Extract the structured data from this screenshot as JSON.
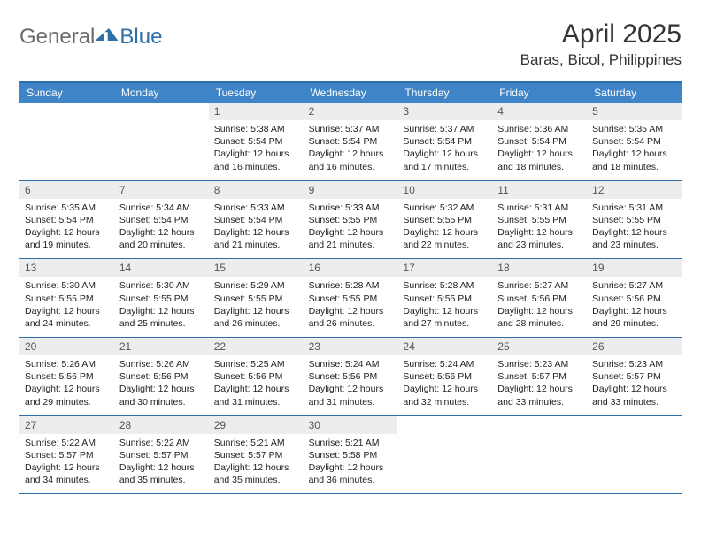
{
  "brand": {
    "gen": "General",
    "blue": "Blue"
  },
  "title": "April 2025",
  "location": "Baras, Bicol, Philippines",
  "headers": [
    "Sunday",
    "Monday",
    "Tuesday",
    "Wednesday",
    "Thursday",
    "Friday",
    "Saturday"
  ],
  "colors": {
    "header_bg": "#3e84c6",
    "header_border": "#2f6fa8",
    "daynum_bg": "#ecedef",
    "text": "#333333"
  },
  "weeks": [
    [
      {
        "empty": true
      },
      {
        "empty": true
      },
      {
        "n": "1",
        "sunrise": "Sunrise: 5:38 AM",
        "sunset": "Sunset: 5:54 PM",
        "dl1": "Daylight: 12 hours",
        "dl2": "and 16 minutes."
      },
      {
        "n": "2",
        "sunrise": "Sunrise: 5:37 AM",
        "sunset": "Sunset: 5:54 PM",
        "dl1": "Daylight: 12 hours",
        "dl2": "and 16 minutes."
      },
      {
        "n": "3",
        "sunrise": "Sunrise: 5:37 AM",
        "sunset": "Sunset: 5:54 PM",
        "dl1": "Daylight: 12 hours",
        "dl2": "and 17 minutes."
      },
      {
        "n": "4",
        "sunrise": "Sunrise: 5:36 AM",
        "sunset": "Sunset: 5:54 PM",
        "dl1": "Daylight: 12 hours",
        "dl2": "and 18 minutes."
      },
      {
        "n": "5",
        "sunrise": "Sunrise: 5:35 AM",
        "sunset": "Sunset: 5:54 PM",
        "dl1": "Daylight: 12 hours",
        "dl2": "and 18 minutes."
      }
    ],
    [
      {
        "n": "6",
        "sunrise": "Sunrise: 5:35 AM",
        "sunset": "Sunset: 5:54 PM",
        "dl1": "Daylight: 12 hours",
        "dl2": "and 19 minutes."
      },
      {
        "n": "7",
        "sunrise": "Sunrise: 5:34 AM",
        "sunset": "Sunset: 5:54 PM",
        "dl1": "Daylight: 12 hours",
        "dl2": "and 20 minutes."
      },
      {
        "n": "8",
        "sunrise": "Sunrise: 5:33 AM",
        "sunset": "Sunset: 5:54 PM",
        "dl1": "Daylight: 12 hours",
        "dl2": "and 21 minutes."
      },
      {
        "n": "9",
        "sunrise": "Sunrise: 5:33 AM",
        "sunset": "Sunset: 5:55 PM",
        "dl1": "Daylight: 12 hours",
        "dl2": "and 21 minutes."
      },
      {
        "n": "10",
        "sunrise": "Sunrise: 5:32 AM",
        "sunset": "Sunset: 5:55 PM",
        "dl1": "Daylight: 12 hours",
        "dl2": "and 22 minutes."
      },
      {
        "n": "11",
        "sunrise": "Sunrise: 5:31 AM",
        "sunset": "Sunset: 5:55 PM",
        "dl1": "Daylight: 12 hours",
        "dl2": "and 23 minutes."
      },
      {
        "n": "12",
        "sunrise": "Sunrise: 5:31 AM",
        "sunset": "Sunset: 5:55 PM",
        "dl1": "Daylight: 12 hours",
        "dl2": "and 23 minutes."
      }
    ],
    [
      {
        "n": "13",
        "sunrise": "Sunrise: 5:30 AM",
        "sunset": "Sunset: 5:55 PM",
        "dl1": "Daylight: 12 hours",
        "dl2": "and 24 minutes."
      },
      {
        "n": "14",
        "sunrise": "Sunrise: 5:30 AM",
        "sunset": "Sunset: 5:55 PM",
        "dl1": "Daylight: 12 hours",
        "dl2": "and 25 minutes."
      },
      {
        "n": "15",
        "sunrise": "Sunrise: 5:29 AM",
        "sunset": "Sunset: 5:55 PM",
        "dl1": "Daylight: 12 hours",
        "dl2": "and 26 minutes."
      },
      {
        "n": "16",
        "sunrise": "Sunrise: 5:28 AM",
        "sunset": "Sunset: 5:55 PM",
        "dl1": "Daylight: 12 hours",
        "dl2": "and 26 minutes."
      },
      {
        "n": "17",
        "sunrise": "Sunrise: 5:28 AM",
        "sunset": "Sunset: 5:55 PM",
        "dl1": "Daylight: 12 hours",
        "dl2": "and 27 minutes."
      },
      {
        "n": "18",
        "sunrise": "Sunrise: 5:27 AM",
        "sunset": "Sunset: 5:56 PM",
        "dl1": "Daylight: 12 hours",
        "dl2": "and 28 minutes."
      },
      {
        "n": "19",
        "sunrise": "Sunrise: 5:27 AM",
        "sunset": "Sunset: 5:56 PM",
        "dl1": "Daylight: 12 hours",
        "dl2": "and 29 minutes."
      }
    ],
    [
      {
        "n": "20",
        "sunrise": "Sunrise: 5:26 AM",
        "sunset": "Sunset: 5:56 PM",
        "dl1": "Daylight: 12 hours",
        "dl2": "and 29 minutes."
      },
      {
        "n": "21",
        "sunrise": "Sunrise: 5:26 AM",
        "sunset": "Sunset: 5:56 PM",
        "dl1": "Daylight: 12 hours",
        "dl2": "and 30 minutes."
      },
      {
        "n": "22",
        "sunrise": "Sunrise: 5:25 AM",
        "sunset": "Sunset: 5:56 PM",
        "dl1": "Daylight: 12 hours",
        "dl2": "and 31 minutes."
      },
      {
        "n": "23",
        "sunrise": "Sunrise: 5:24 AM",
        "sunset": "Sunset: 5:56 PM",
        "dl1": "Daylight: 12 hours",
        "dl2": "and 31 minutes."
      },
      {
        "n": "24",
        "sunrise": "Sunrise: 5:24 AM",
        "sunset": "Sunset: 5:56 PM",
        "dl1": "Daylight: 12 hours",
        "dl2": "and 32 minutes."
      },
      {
        "n": "25",
        "sunrise": "Sunrise: 5:23 AM",
        "sunset": "Sunset: 5:57 PM",
        "dl1": "Daylight: 12 hours",
        "dl2": "and 33 minutes."
      },
      {
        "n": "26",
        "sunrise": "Sunrise: 5:23 AM",
        "sunset": "Sunset: 5:57 PM",
        "dl1": "Daylight: 12 hours",
        "dl2": "and 33 minutes."
      }
    ],
    [
      {
        "n": "27",
        "sunrise": "Sunrise: 5:22 AM",
        "sunset": "Sunset: 5:57 PM",
        "dl1": "Daylight: 12 hours",
        "dl2": "and 34 minutes."
      },
      {
        "n": "28",
        "sunrise": "Sunrise: 5:22 AM",
        "sunset": "Sunset: 5:57 PM",
        "dl1": "Daylight: 12 hours",
        "dl2": "and 35 minutes."
      },
      {
        "n": "29",
        "sunrise": "Sunrise: 5:21 AM",
        "sunset": "Sunset: 5:57 PM",
        "dl1": "Daylight: 12 hours",
        "dl2": "and 35 minutes."
      },
      {
        "n": "30",
        "sunrise": "Sunrise: 5:21 AM",
        "sunset": "Sunset: 5:58 PM",
        "dl1": "Daylight: 12 hours",
        "dl2": "and 36 minutes."
      },
      {
        "empty": true
      },
      {
        "empty": true
      },
      {
        "empty": true
      }
    ]
  ]
}
